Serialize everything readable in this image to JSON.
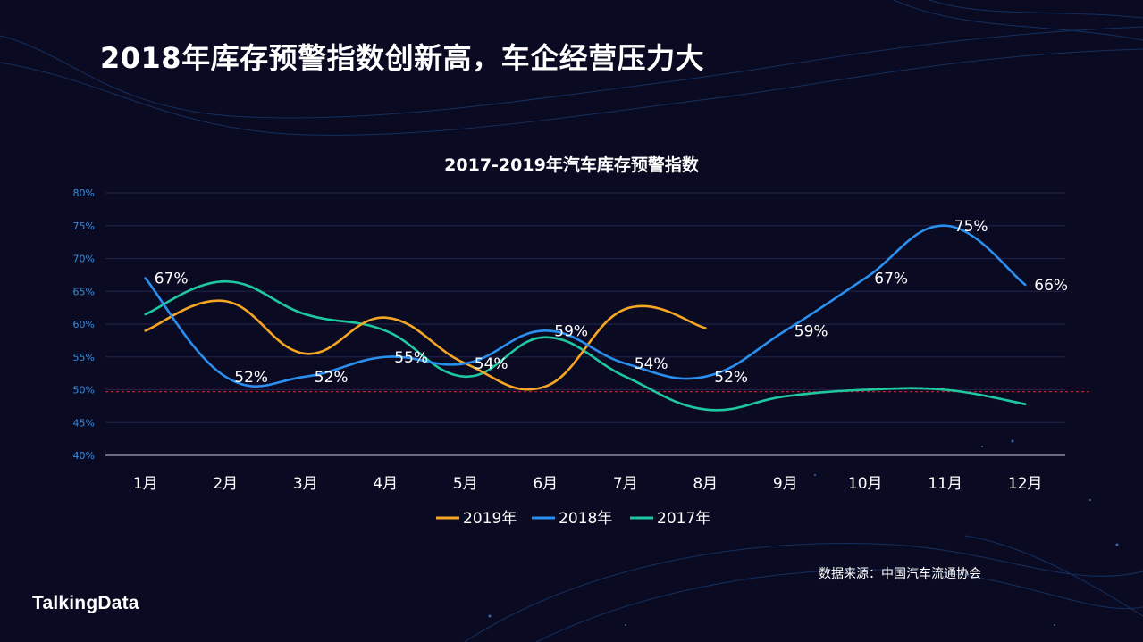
{
  "slide": {
    "title": "2018年库存预警指数创新高，车企经营压力大",
    "source": "数据来源：中国汽车流通协会",
    "brand": "TalkingData"
  },
  "colors": {
    "background": "#0a0b22",
    "grid": "#20244a",
    "axis_tick": "#3a8bdc",
    "reference_line": "#c0283c",
    "series_2019": "#f6a623",
    "series_2018": "#2b8fef",
    "series_2017": "#1ec9a2"
  },
  "chart_data": {
    "type": "line",
    "title": "2017-2019年汽车库存预警指数",
    "categories": [
      "1月",
      "2月",
      "3月",
      "4月",
      "5月",
      "6月",
      "7月",
      "8月",
      "9月",
      "10月",
      "11月",
      "12月"
    ],
    "ylim": [
      40,
      80
    ],
    "yticks": [
      "40%",
      "45%",
      "50%",
      "55%",
      "60%",
      "65%",
      "70%",
      "75%",
      "80%"
    ],
    "grid": true,
    "legend_position": "bottom-center",
    "reference_line": 49.7,
    "series": [
      {
        "name": "2019年",
        "color_key": "series_2019",
        "values": [
          59,
          63.5,
          55.5,
          61,
          54,
          50.5,
          62.3,
          59.4,
          null,
          null,
          null,
          null
        ]
      },
      {
        "name": "2018年",
        "color_key": "series_2018",
        "values": [
          67,
          52,
          52,
          55,
          54,
          59,
          54,
          52,
          59,
          67,
          75,
          66
        ]
      },
      {
        "name": "2017年",
        "color_key": "series_2017",
        "values": [
          61.5,
          66.5,
          61.5,
          59,
          52,
          58,
          52,
          47,
          49,
          50,
          50,
          47.8
        ]
      }
    ],
    "data_labels": {
      "series": "2018年",
      "labels": [
        "67%",
        "52%",
        "52%",
        "55%",
        "54%",
        "59%",
        "54%",
        "52%",
        "59%",
        "67%",
        "75%",
        "66%"
      ]
    }
  }
}
